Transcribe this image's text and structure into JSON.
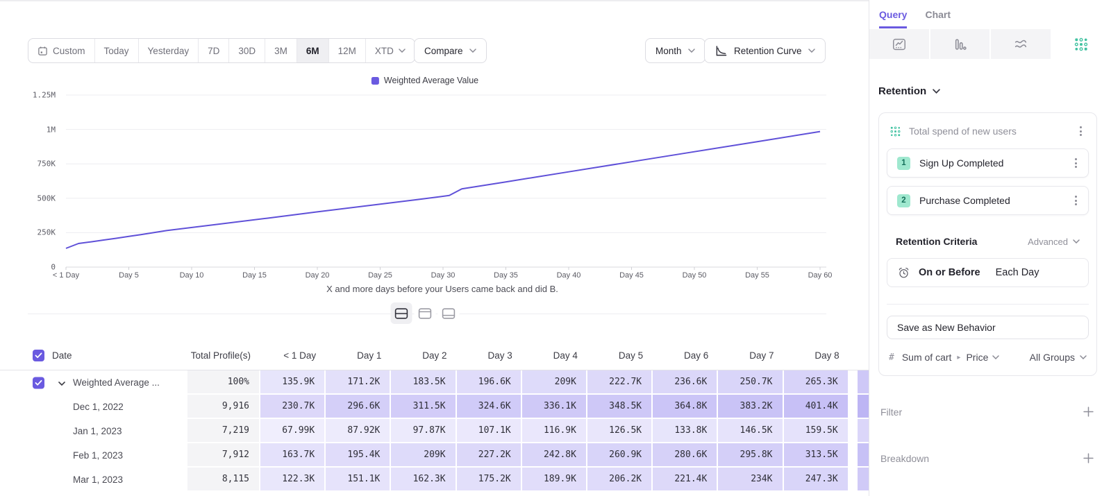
{
  "colors": {
    "accent": "#6a5ae0",
    "line": "#5f50d8",
    "cell_tint_rgb": "112,95,232",
    "teal_bg": "#9fe8cf",
    "teal_text": "#15705a",
    "teal_icon": "#3fc1a0"
  },
  "toolbar": {
    "date_ranges": [
      "Custom",
      "Today",
      "Yesterday",
      "7D",
      "30D",
      "3M",
      "6M",
      "12M",
      "XTD"
    ],
    "active_range": "6M",
    "compare_label": "Compare",
    "granularity_label": "Month",
    "chart_type_label": "Retention Curve"
  },
  "chart_data": {
    "type": "line",
    "title": "",
    "xlabel": "X and more days before your Users came back and did B.",
    "ylabel": "",
    "unit": "K",
    "ylim_k": [
      0,
      1250
    ],
    "xlim_days": [
      0,
      60
    ],
    "grid": "horizontal",
    "legend_position": "top-center",
    "y_ticks": [
      {
        "label": "1.25M",
        "value_k": 1250
      },
      {
        "label": "1M",
        "value_k": 1000
      },
      {
        "label": "750K",
        "value_k": 750
      },
      {
        "label": "500K",
        "value_k": 500
      },
      {
        "label": "250K",
        "value_k": 250
      },
      {
        "label": "0",
        "value_k": 0
      }
    ],
    "x_ticks": [
      {
        "label": "< 1 Day",
        "day": 0
      },
      {
        "label": "Day 5",
        "day": 5
      },
      {
        "label": "Day 10",
        "day": 10
      },
      {
        "label": "Day 15",
        "day": 15
      },
      {
        "label": "Day 20",
        "day": 20
      },
      {
        "label": "Day 25",
        "day": 25
      },
      {
        "label": "Day 30",
        "day": 30
      },
      {
        "label": "Day 35",
        "day": 35
      },
      {
        "label": "Day 40",
        "day": 40
      },
      {
        "label": "Day 45",
        "day": 45
      },
      {
        "label": "Day 50",
        "day": 50
      },
      {
        "label": "Day 55",
        "day": 55
      },
      {
        "label": "Day 60",
        "day": 60
      }
    ],
    "series": [
      {
        "name": "Weighted Average Value",
        "points_day_valuek": [
          [
            0,
            135.9
          ],
          [
            1,
            171.2
          ],
          [
            2,
            183.5
          ],
          [
            3,
            196.6
          ],
          [
            4,
            209
          ],
          [
            5,
            222.7
          ],
          [
            6,
            236.6
          ],
          [
            7,
            250.7
          ],
          [
            8,
            265.3
          ],
          [
            12,
            310
          ],
          [
            16,
            355
          ],
          [
            20,
            401
          ],
          [
            24,
            446
          ],
          [
            28,
            491
          ],
          [
            30.5,
            520
          ],
          [
            31.5,
            568
          ],
          [
            35,
            619
          ],
          [
            40,
            692
          ],
          [
            45,
            765
          ],
          [
            50,
            838
          ],
          [
            55,
            911
          ],
          [
            60,
            985
          ]
        ]
      }
    ]
  },
  "view_toggle": {
    "options": [
      "split-view",
      "chart-only-view",
      "table-only-view"
    ],
    "active": "split-view"
  },
  "table": {
    "headers": [
      "Date",
      "Total Profile(s)",
      "< 1 Day",
      "Day 1",
      "Day 2",
      "Day 3",
      "Day 4",
      "Day 5",
      "Day 6",
      "Day 7",
      "Day 8"
    ],
    "rows": [
      {
        "label": "Weighted Average ...",
        "checked": true,
        "expandable": true,
        "total": "100%",
        "values": [
          "135.9K",
          "171.2K",
          "183.5K",
          "196.6K",
          "209K",
          "222.7K",
          "236.6K",
          "250.7K",
          "265.3K"
        ]
      },
      {
        "label": "Dec 1, 2022",
        "total": "9,916",
        "values": [
          "230.7K",
          "296.6K",
          "311.5K",
          "324.6K",
          "336.1K",
          "348.5K",
          "364.8K",
          "383.2K",
          "401.4K"
        ]
      },
      {
        "label": "Jan 1, 2023",
        "total": "7,219",
        "values": [
          "67.99K",
          "87.92K",
          "97.87K",
          "107.1K",
          "116.9K",
          "126.5K",
          "133.8K",
          "146.5K",
          "159.5K"
        ]
      },
      {
        "label": "Feb 1, 2023",
        "total": "7,912",
        "values": [
          "163.7K",
          "195.4K",
          "209K",
          "227.2K",
          "242.8K",
          "260.9K",
          "280.6K",
          "295.8K",
          "313.5K"
        ]
      },
      {
        "label": "Mar 1, 2023",
        "total": "8,115",
        "values": [
          "122.3K",
          "151.1K",
          "162.3K",
          "175.2K",
          "189.9K",
          "206.2K",
          "221.4K",
          "234K",
          "247.3K"
        ]
      }
    ]
  },
  "sidebar": {
    "tabs": [
      {
        "label": "Query",
        "active": true
      },
      {
        "label": "Chart",
        "active": false
      }
    ],
    "chart_type_icons": [
      {
        "name": "insights-icon",
        "active": false
      },
      {
        "name": "funnels-icon",
        "active": false
      },
      {
        "name": "flows-icon",
        "active": false
      },
      {
        "name": "retention-icon",
        "active": true
      }
    ],
    "section_title": "Retention",
    "behavior": {
      "title": "Total spend of new users",
      "events": [
        {
          "num": "1",
          "label": "Sign Up Completed"
        },
        {
          "num": "2",
          "label": "Purchase Completed"
        }
      ]
    },
    "criteria": {
      "label": "Retention Criteria",
      "mode": "Advanced",
      "condition": "On or Before",
      "period": "Each Day"
    },
    "save_label": "Save as New Behavior",
    "measure": {
      "hash": "#",
      "property": "Sum of cart",
      "sub_property": "Price",
      "group": "All Groups"
    },
    "filter_label": "Filter",
    "breakdown_label": "Breakdown"
  }
}
